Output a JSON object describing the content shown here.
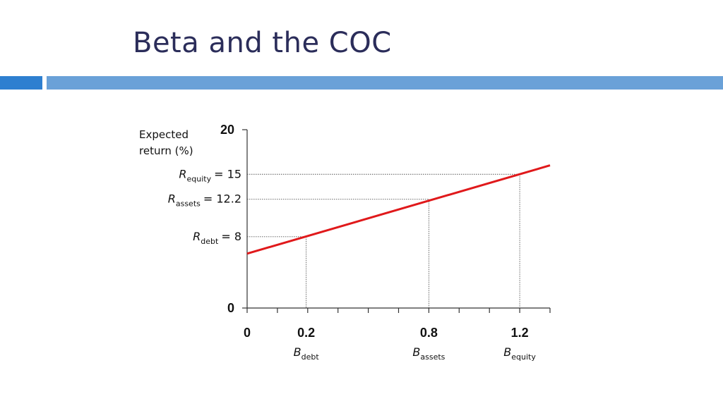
{
  "slide": {
    "title": "Beta and the COC"
  },
  "colors": {
    "title": "#2b2d5a",
    "accent_bar_dark": "#2e7fd0",
    "accent_bar_light": "#6aa1d8",
    "line": "#e0191b",
    "axis": "#333333",
    "guide": "#555555"
  },
  "chart_data": {
    "type": "line",
    "ylabel": "Expected return (%)",
    "ylabel_lines": [
      "Expected",
      "return (%)"
    ],
    "xlim": [
      0,
      1.0
    ],
    "ylim": [
      0,
      20
    ],
    "x_ticks": [
      0,
      0.1,
      0.2,
      0.3,
      0.4,
      0.5,
      0.6,
      0.7,
      0.8,
      0.9,
      1.0
    ],
    "x_tick_labels": [
      {
        "x": 0,
        "text": "0"
      },
      {
        "x": 0.195,
        "text": "0.2"
      },
      {
        "x": 0.6,
        "text": "0.8"
      },
      {
        "x": 0.9,
        "text": "1.2"
      }
    ],
    "y_tick_labels": [
      {
        "y": 20,
        "text": "20"
      },
      {
        "y": 0,
        "text": "0"
      }
    ],
    "series": [
      {
        "x": [
          0,
          1.0
        ],
        "y": [
          6.1,
          16.0
        ]
      }
    ],
    "points": [
      {
        "x": 0.195,
        "y": 8.0,
        "r_base": "R",
        "r_sub": "debt",
        "r_value": "= 8",
        "b_base": "B",
        "b_sub": "debt"
      },
      {
        "x": 0.6,
        "y": 12.2,
        "r_base": "R",
        "r_sub": "assets",
        "r_value": "= 12.2",
        "b_base": "B",
        "b_sub": "assets"
      },
      {
        "x": 0.9,
        "y": 15.0,
        "r_base": "R",
        "r_sub": "equity",
        "r_value": "= 15",
        "b_base": "B",
        "b_sub": "equity"
      }
    ],
    "grid": false
  }
}
